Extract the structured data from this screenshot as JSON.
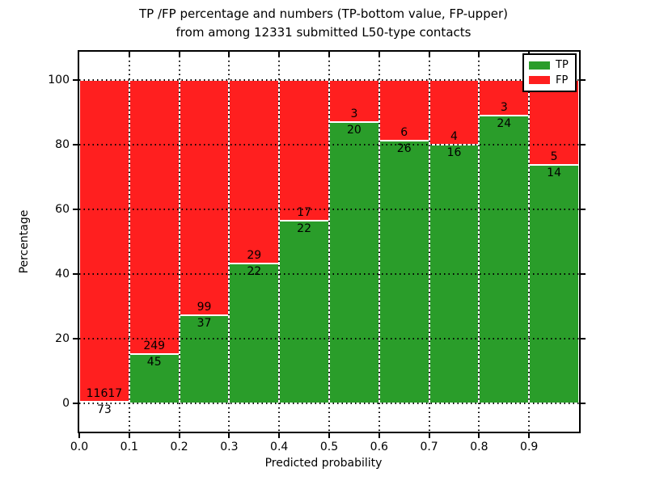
{
  "title_line1": "TP /FP percentage and numbers (TP-bottom value, FP-upper)",
  "title_line2": "from among 12331 submitted L50-type contacts",
  "chart_data": {
    "type": "bar",
    "stacked": true,
    "normalized_to_percent": true,
    "title": "TP /FP percentage and numbers (TP-bottom value, FP-upper) from among 12331 submitted L50-type contacts",
    "xlabel": "Predicted probability",
    "ylabel": "Percentage",
    "bin_edges": [
      0.0,
      0.1,
      0.2,
      0.3,
      0.4,
      0.5,
      0.6,
      0.7,
      0.8,
      0.9,
      1.0
    ],
    "xtick_labels": [
      "0.0",
      "0.1",
      "0.2",
      "0.3",
      "0.4",
      "0.5",
      "0.6",
      "0.7",
      "0.8",
      "0.9"
    ],
    "ytick_values": [
      0,
      20,
      40,
      60,
      80,
      100
    ],
    "xlim": [
      0.0,
      1.0
    ],
    "ylim": [
      -8.75,
      108.75
    ],
    "grid": "dotted, drawn over bars, at all x and y ticks",
    "total_contacts": 12331,
    "series": [
      {
        "name": "TP",
        "color": "#2a9d2a",
        "counts": [
          73,
          45,
          37,
          22,
          22,
          20,
          26,
          16,
          24,
          14
        ]
      },
      {
        "name": "FP",
        "color": "#ff1f1f",
        "counts": [
          11617,
          249,
          99,
          29,
          17,
          3,
          6,
          4,
          3,
          5
        ]
      }
    ],
    "tp_percent_per_bin": [
      0.62,
      15.31,
      27.21,
      43.14,
      56.41,
      86.96,
      81.25,
      80.0,
      88.89,
      73.68
    ],
    "legend": {
      "position": "upper right",
      "entries": [
        {
          "label": "TP",
          "color": "#2a9d2a"
        },
        {
          "label": "FP",
          "color": "#ff1f1f"
        }
      ]
    }
  }
}
